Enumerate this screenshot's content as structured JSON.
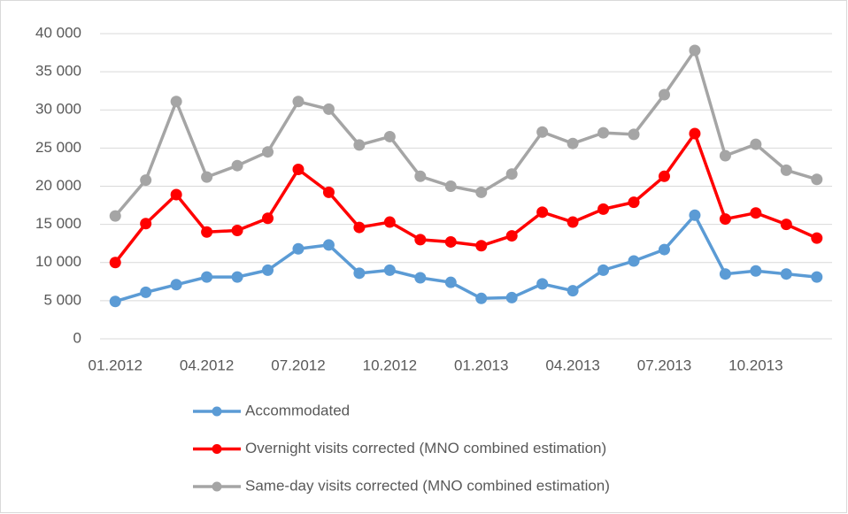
{
  "chart_data": {
    "type": "line",
    "categories": [
      "01.2012",
      null,
      null,
      "04.2012",
      null,
      null,
      "07.2012",
      null,
      null,
      "10.2012",
      null,
      null,
      "01.2013",
      null,
      null,
      "04.2013",
      null,
      null,
      "07.2013",
      null,
      null,
      "10.2013",
      null,
      null
    ],
    "series": [
      {
        "name": "Accommodated",
        "color": "#5b9bd5",
        "values": [
          4900,
          6100,
          7100,
          8100,
          8100,
          9000,
          11800,
          12300,
          8600,
          9000,
          8000,
          7400,
          5300,
          5400,
          7200,
          6300,
          9000,
          10200,
          11700,
          16200,
          8500,
          8900,
          8500,
          8100
        ]
      },
      {
        "name": "Overnight visits corrected (MNO combined estimation)",
        "color": "#ff0000",
        "values": [
          10000,
          15100,
          18900,
          14000,
          14200,
          15800,
          22200,
          19200,
          14600,
          15300,
          13000,
          12700,
          12200,
          13500,
          16600,
          15300,
          17000,
          17900,
          21300,
          26900,
          15700,
          16500,
          15000,
          13200
        ]
      },
      {
        "name": "Same-day visits corrected (MNO combined estimation)",
        "color": "#a5a5a5",
        "values": [
          16100,
          20800,
          31100,
          21200,
          22700,
          24500,
          31100,
          30100,
          25400,
          26500,
          21300,
          20000,
          19200,
          21600,
          27100,
          25600,
          27000,
          26800,
          32000,
          37800,
          24000,
          25500,
          22100,
          20900
        ]
      }
    ],
    "ylim": [
      0,
      40000
    ],
    "yticks": [
      0,
      {
        "value": 5000,
        "label": "5 000"
      },
      {
        "value": 10000,
        "label": "10 000"
      },
      {
        "value": 15000,
        "label": "15 000"
      },
      {
        "value": 20000,
        "label": "20 000"
      },
      {
        "value": 25000,
        "label": "25 000"
      },
      {
        "value": 30000,
        "label": "30 000"
      },
      {
        "value": 35000,
        "label": "35 000"
      },
      {
        "value": 40000,
        "label": "40 000"
      }
    ],
    "grid": true
  }
}
